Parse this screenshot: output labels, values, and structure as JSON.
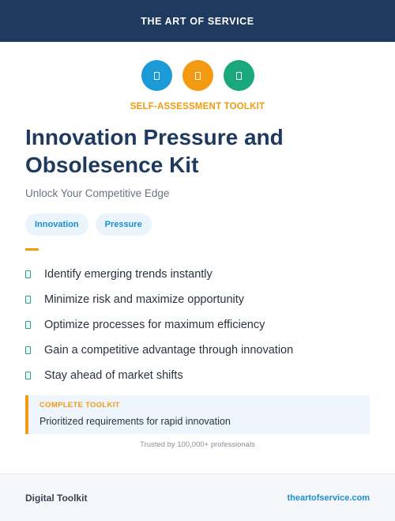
{
  "header": {
    "brand": "THE ART OF SERVICE"
  },
  "icons": [
    {
      "name": "document-icon",
      "color": "#1a9ad6"
    },
    {
      "name": "document-icon",
      "color": "#f29a12"
    },
    {
      "name": "document-icon",
      "color": "#1aa87a"
    }
  ],
  "kicker": "SELF-ASSESSMENT TOOLKIT",
  "title": "Innovation Pressure and Obsolesence Kit",
  "subtitle": "Unlock Your Competitive Edge",
  "tags": [
    "Innovation",
    "Pressure"
  ],
  "features": [
    "Identify emerging trends instantly",
    "Minimize risk and maximize opportunity",
    "Optimize processes for maximum efficiency",
    "Gain a competitive advantage through innovation",
    "Stay ahead of market shifts"
  ],
  "callout": {
    "label": "COMPLETE TOOLKIT",
    "text": "Prioritized requirements for rapid innovation"
  },
  "trusted": "Trusted by 100,000+ professionals",
  "footer": {
    "left": "Digital Toolkit",
    "right": "theartofservice.com"
  },
  "colors": {
    "navy": "#1e3a5f",
    "accent_orange": "#f29a12",
    "accent_blue": "#1a9ad6",
    "accent_green": "#1aa87a"
  }
}
